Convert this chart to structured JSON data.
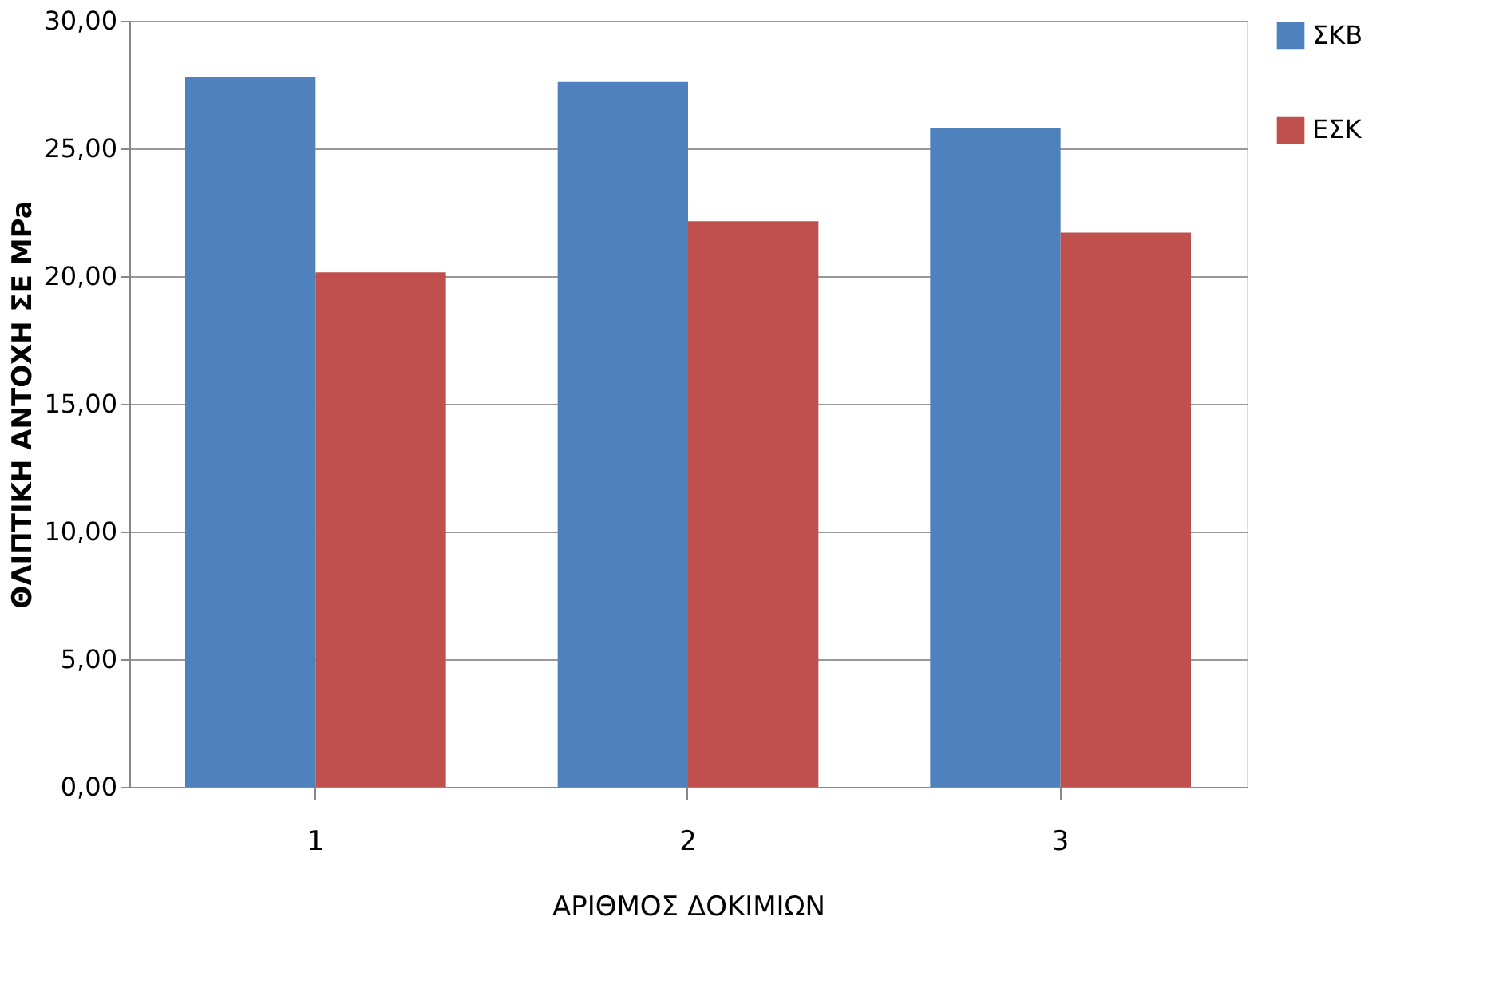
{
  "chart_data": {
    "type": "bar",
    "xlabel": "ΑΡΙΘΜΟΣ ΔΟΚΙΜΙΩΝ",
    "ylabel": "ΘΛΙΠΤΙΚΗ ΑΝΤΟΧΗ ΣΕ MPa",
    "categories": [
      "1",
      "2",
      "3"
    ],
    "series": [
      {
        "name": "ΣΚΒ",
        "color": "#4f81bd",
        "values": [
          27.8,
          27.6,
          25.8
        ]
      },
      {
        "name": "ΕΣΚ",
        "color": "#c0504d",
        "values": [
          20.15,
          22.15,
          21.7
        ]
      }
    ],
    "ylim": [
      0,
      30
    ],
    "yticks": [
      {
        "value": 0,
        "label": "0,00"
      },
      {
        "value": 5,
        "label": "5,00"
      },
      {
        "value": 10,
        "label": "10,00"
      },
      {
        "value": 15,
        "label": "15,00"
      },
      {
        "value": 20,
        "label": "20,00"
      },
      {
        "value": 25,
        "label": "25,00"
      },
      {
        "value": 30,
        "label": "30,00"
      }
    ],
    "grid": "y",
    "legend": "right"
  }
}
